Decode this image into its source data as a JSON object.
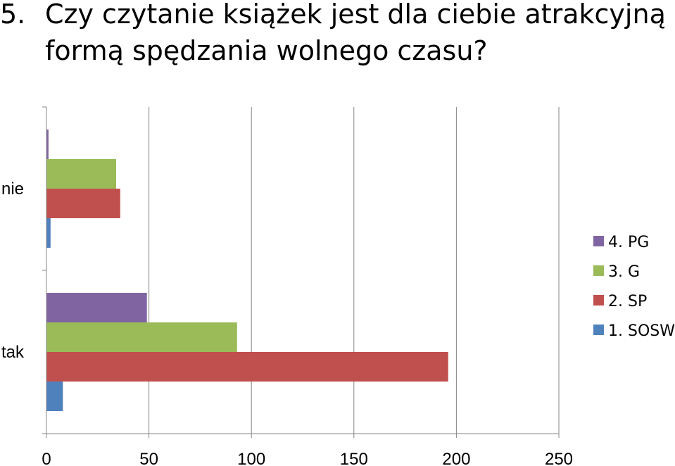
{
  "question_number": "5.",
  "title_line1": "Czy czytanie książek jest dla ciebie atrakcyjną",
  "title_line2": "formą spędzania wolnego czasu?",
  "chart_data": {
    "type": "bar",
    "orientation": "horizontal",
    "categories": [
      "tak",
      "nie"
    ],
    "xlim": [
      0,
      250
    ],
    "xticks": [
      0,
      50,
      100,
      150,
      200,
      250
    ],
    "grid": true,
    "legend_position": "right",
    "series": [
      {
        "name": "1. SOSW",
        "color": "#4F81BD",
        "values": [
          8,
          2
        ]
      },
      {
        "name": "2. SP",
        "color": "#C0504D",
        "values": [
          196,
          36
        ]
      },
      {
        "name": "3. G",
        "color": "#9BBB59",
        "values": [
          93,
          34
        ]
      },
      {
        "name": "4. PG",
        "color": "#8064A2",
        "values": [
          49,
          1
        ]
      }
    ]
  }
}
